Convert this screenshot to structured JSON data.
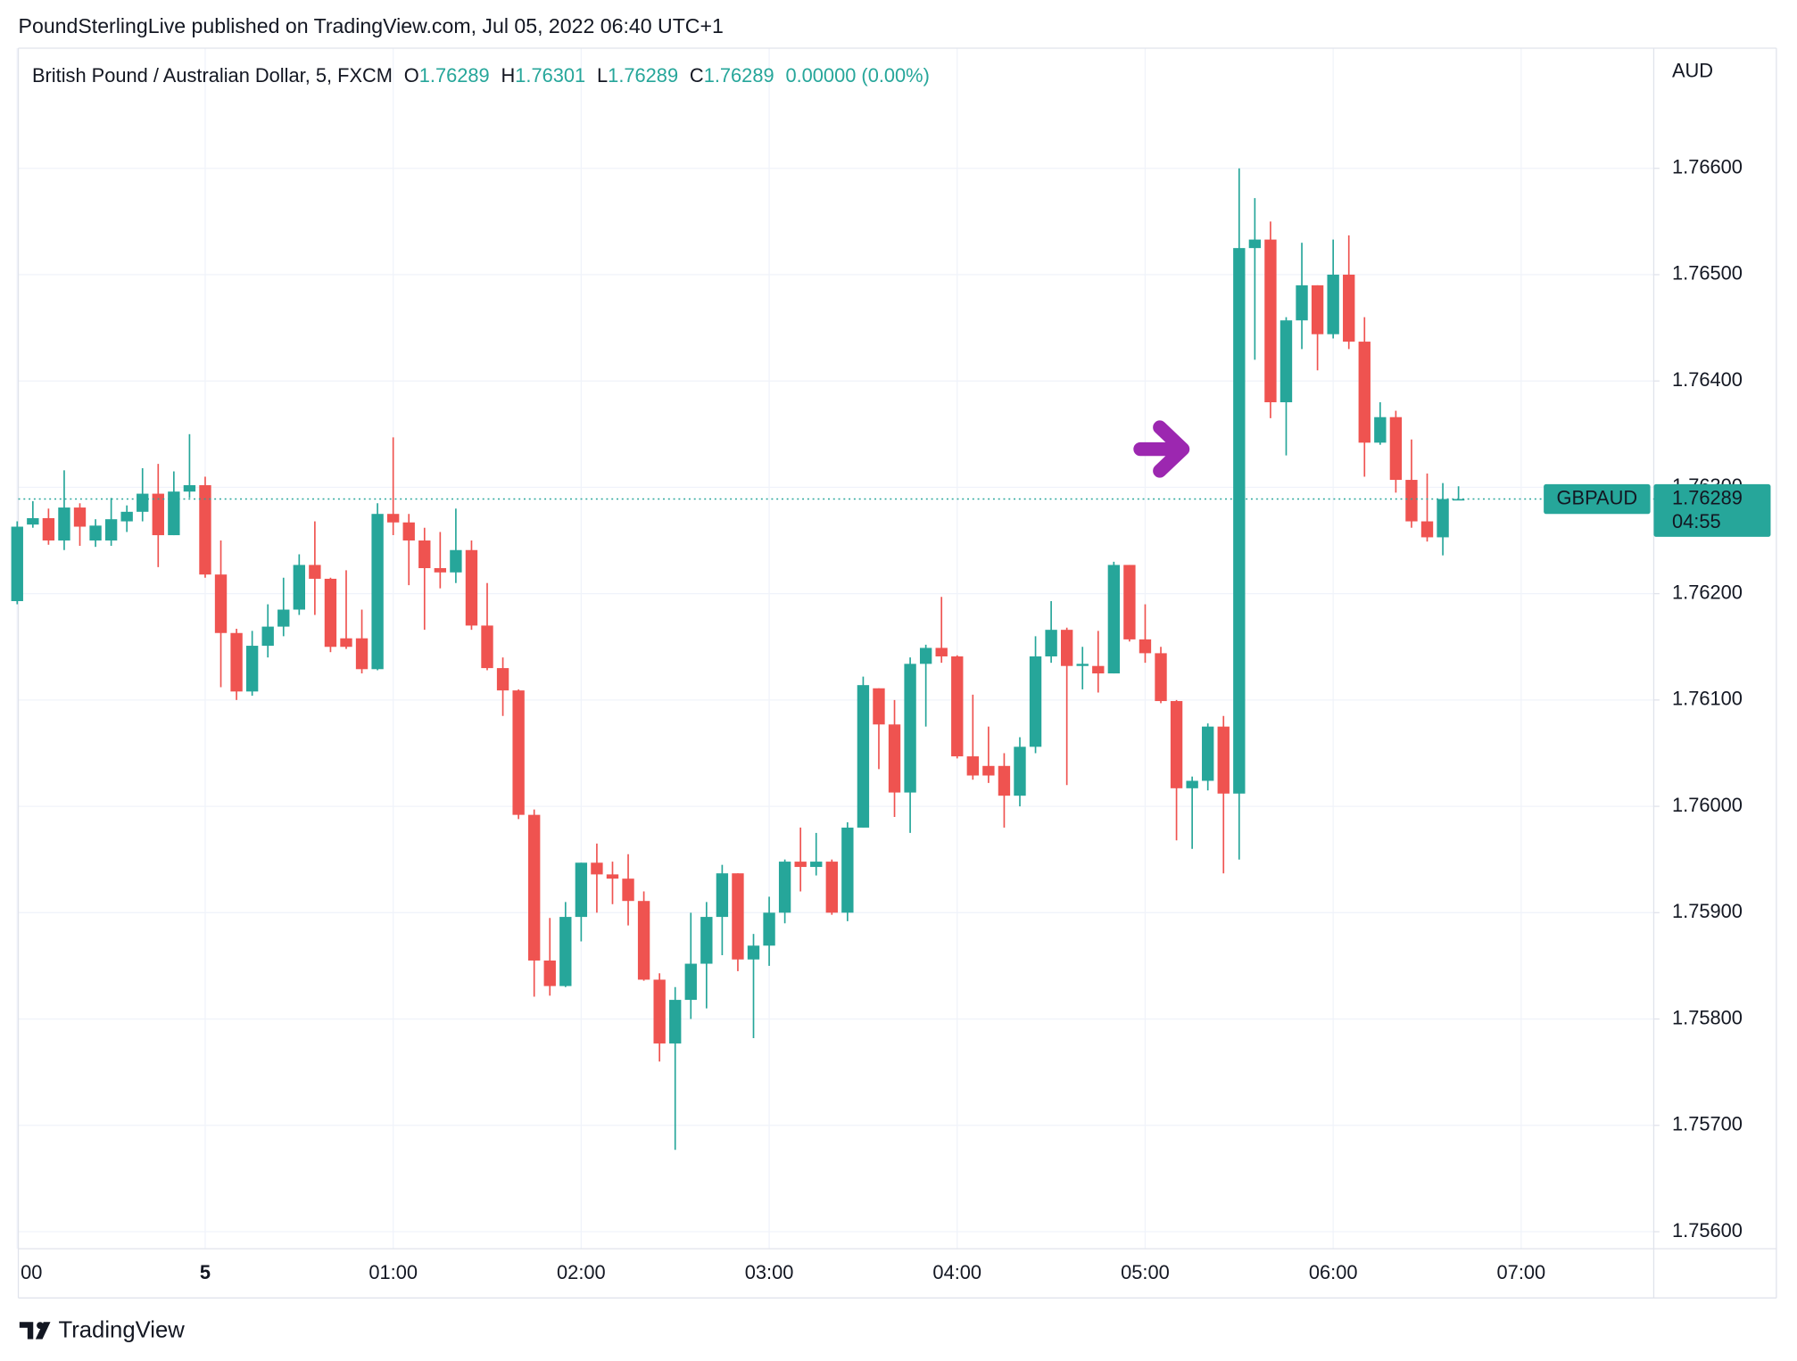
{
  "header": {
    "publisher": "PoundSterlingLive published on TradingView.com, Jul 05, 2022 06:40 UTC+1"
  },
  "chart_data": {
    "type": "candlestick",
    "symbol": "British Pound / Australian Dollar, 5, FXCM",
    "ohlc_labels": [
      "O",
      "H",
      "L",
      "C"
    ],
    "ohlc_values": [
      1.76289,
      1.76301,
      1.76289,
      1.76289
    ],
    "change": "0.00000 (0.00%)",
    "currency": "AUD",
    "symbol_tag": "GBPAUD",
    "last_price": 1.76289,
    "countdown": "04:55",
    "up_color": "#26a69a",
    "down_color": "#ef5350",
    "grid": true,
    "categories": [
      "23:00",
      "23:05",
      "23:10",
      "23:15",
      "23:20",
      "23:25",
      "23:30",
      "23:35",
      "23:40",
      "23:45",
      "23:50",
      "23:55",
      "00:00",
      "00:05",
      "00:10",
      "00:15",
      "00:20",
      "00:25",
      "00:30",
      "00:35",
      "00:40",
      "00:45",
      "00:50",
      "00:55",
      "01:00",
      "01:05",
      "01:10",
      "01:15",
      "01:20",
      "01:25",
      "01:30",
      "01:35",
      "01:40",
      "01:45",
      "01:50",
      "01:55",
      "02:00",
      "02:05",
      "02:10",
      "02:15",
      "02:20",
      "02:25",
      "02:30",
      "02:35",
      "02:40",
      "02:45",
      "02:50",
      "02:55",
      "03:00",
      "03:05",
      "03:10",
      "03:15",
      "03:20",
      "03:25",
      "03:30",
      "03:35",
      "03:40",
      "03:45",
      "03:50",
      "03:55",
      "04:00",
      "04:05",
      "04:10",
      "04:15",
      "04:20",
      "04:25",
      "04:30",
      "04:35",
      "04:40",
      "04:45",
      "04:50",
      "04:55",
      "05:00",
      "05:05",
      "05:10",
      "05:15",
      "05:20",
      "05:25",
      "05:30",
      "05:35",
      "05:40",
      "05:45",
      "05:50",
      "05:55",
      "06:00",
      "06:05",
      "06:10",
      "06:15",
      "06:20",
      "06:25",
      "06:30",
      "06:35",
      "06:40"
    ],
    "open": [
      1.76193,
      1.76265,
      1.76271,
      1.7625,
      1.76281,
      1.7625,
      1.7625,
      1.76268,
      1.76277,
      1.76294,
      1.76255,
      1.76296,
      1.76302,
      1.76218,
      1.76163,
      1.76108,
      1.76151,
      1.76169,
      1.76185,
      1.76227,
      1.76214,
      1.76158,
      1.76158,
      1.76129,
      1.76275,
      1.76267,
      1.7625,
      1.76224,
      1.7622,
      1.76241,
      1.7617,
      1.7613,
      1.76109,
      1.75992,
      1.75855,
      1.75831,
      1.75896,
      1.75947,
      1.75936,
      1.75932,
      1.75911,
      1.75837,
      1.75777,
      1.75818,
      1.75852,
      1.75896,
      1.75937,
      1.75856,
      1.75869,
      1.759,
      1.75948,
      1.75943,
      1.75948,
      1.759,
      1.7598,
      1.76111,
      1.76077,
      1.76013,
      1.76134,
      1.76149,
      1.76141,
      1.76047,
      1.76038,
      1.76038,
      1.7601,
      1.76056,
      1.76141,
      1.76166,
      1.76132,
      1.76132,
      1.76125,
      1.76227,
      1.76157,
      1.76144,
      1.76099,
      1.76017,
      1.76024,
      1.76075,
      1.76012,
      1.76525,
      1.76533,
      1.7638,
      1.76457,
      1.7649,
      1.76444,
      1.765,
      1.76437,
      1.76342,
      1.76366,
      1.76307,
      1.76268,
      1.76253,
      1.76289
    ],
    "high": [
      1.76268,
      1.76287,
      1.7628,
      1.76316,
      1.76285,
      1.7627,
      1.7629,
      1.76283,
      1.76318,
      1.76322,
      1.76315,
      1.7635,
      1.7631,
      1.7625,
      1.76167,
      1.76165,
      1.7619,
      1.76215,
      1.76237,
      1.76268,
      1.76215,
      1.76222,
      1.76185,
      1.76285,
      1.76347,
      1.76275,
      1.76262,
      1.76258,
      1.7628,
      1.7625,
      1.7621,
      1.7614,
      1.7611,
      1.75997,
      1.75895,
      1.7591,
      1.75947,
      1.75965,
      1.75948,
      1.75955,
      1.7592,
      1.75843,
      1.7583,
      1.759,
      1.7591,
      1.75945,
      1.75937,
      1.7588,
      1.75915,
      1.7595,
      1.7598,
      1.75975,
      1.7595,
      1.75985,
      1.76122,
      1.76111,
      1.761,
      1.7614,
      1.76152,
      1.76197,
      1.76142,
      1.76105,
      1.76075,
      1.7605,
      1.76065,
      1.7616,
      1.76193,
      1.76168,
      1.7615,
      1.76165,
      1.7623,
      1.76227,
      1.7619,
      1.7615,
      1.761,
      1.76028,
      1.76078,
      1.76085,
      1.766,
      1.76572,
      1.7655,
      1.7646,
      1.7653,
      1.7649,
      1.76533,
      1.76537,
      1.7646,
      1.7638,
      1.76372,
      1.76345,
      1.76313,
      1.76304,
      1.76301
    ],
    "low": [
      1.7619,
      1.76262,
      1.76246,
      1.76241,
      1.76245,
      1.76244,
      1.76245,
      1.76258,
      1.76268,
      1.76225,
      1.76255,
      1.7629,
      1.76215,
      1.76112,
      1.761,
      1.76104,
      1.7614,
      1.7616,
      1.7618,
      1.7618,
      1.76145,
      1.76148,
      1.76125,
      1.76128,
      1.76255,
      1.76208,
      1.76166,
      1.76205,
      1.7621,
      1.76166,
      1.76128,
      1.76085,
      1.75988,
      1.75821,
      1.75822,
      1.7583,
      1.75873,
      1.759,
      1.75908,
      1.75888,
      1.75836,
      1.7576,
      1.75677,
      1.758,
      1.7581,
      1.7586,
      1.75845,
      1.75782,
      1.7585,
      1.7589,
      1.7592,
      1.75935,
      1.75898,
      1.75892,
      1.7598,
      1.76035,
      1.7599,
      1.75975,
      1.76075,
      1.76135,
      1.76045,
      1.76025,
      1.76022,
      1.7598,
      1.76,
      1.7605,
      1.76135,
      1.7602,
      1.7611,
      1.76107,
      1.76125,
      1.76155,
      1.76135,
      1.76097,
      1.75968,
      1.7596,
      1.76015,
      1.75937,
      1.7595,
      1.7642,
      1.76365,
      1.7633,
      1.7643,
      1.7641,
      1.7644,
      1.7643,
      1.7631,
      1.7634,
      1.76295,
      1.76262,
      1.76249,
      1.76236,
      1.76289
    ],
    "close": [
      1.76263,
      1.76271,
      1.7625,
      1.76281,
      1.76263,
      1.76264,
      1.7627,
      1.76277,
      1.76294,
      1.76255,
      1.76296,
      1.76302,
      1.76218,
      1.76163,
      1.76108,
      1.76151,
      1.76169,
      1.76185,
      1.76227,
      1.76214,
      1.7615,
      1.7615,
      1.76129,
      1.76275,
      1.76267,
      1.7625,
      1.76224,
      1.7622,
      1.76241,
      1.7617,
      1.7613,
      1.76109,
      1.75992,
      1.75855,
      1.75831,
      1.75896,
      1.75947,
      1.75936,
      1.75932,
      1.75911,
      1.75837,
      1.75777,
      1.75818,
      1.75852,
      1.75896,
      1.75937,
      1.75856,
      1.75869,
      1.759,
      1.75948,
      1.75943,
      1.75948,
      1.759,
      1.7598,
      1.76114,
      1.76077,
      1.76013,
      1.76134,
      1.76149,
      1.76141,
      1.76047,
      1.76029,
      1.76029,
      1.7601,
      1.76056,
      1.76141,
      1.76166,
      1.76132,
      1.76134,
      1.76125,
      1.76227,
      1.76157,
      1.76144,
      1.76099,
      1.76017,
      1.76024,
      1.76075,
      1.76012,
      1.76525,
      1.76533,
      1.7638,
      1.76457,
      1.7649,
      1.76444,
      1.765,
      1.76437,
      1.76342,
      1.76366,
      1.76307,
      1.76268,
      1.76253,
      1.76289,
      1.76289
    ],
    "ylim": [
      1.75584,
      1.76713
    ],
    "yticks": [
      {
        "value": 1.756,
        "label": "1.75600"
      },
      {
        "value": 1.757,
        "label": "1.75700"
      },
      {
        "value": 1.758,
        "label": "1.75800"
      },
      {
        "value": 1.759,
        "label": "1.75900"
      },
      {
        "value": 1.76,
        "label": "1.76000"
      },
      {
        "value": 1.761,
        "label": "1.76100"
      },
      {
        "value": 1.762,
        "label": "1.76200"
      },
      {
        "value": 1.763,
        "label": "1.76300"
      },
      {
        "value": 1.764,
        "label": "1.76400"
      },
      {
        "value": 1.765,
        "label": "1.76500"
      },
      {
        "value": 1.766,
        "label": "1.76600"
      }
    ],
    "xticks": [
      {
        "value": "23:00",
        "label": "00"
      },
      {
        "value": "00:00",
        "label": "5"
      },
      "01:00",
      "02:00",
      "03:00",
      "04:00",
      "05:00",
      "06:00",
      "07:00"
    ]
  },
  "footer": {
    "brand": "TradingView"
  }
}
